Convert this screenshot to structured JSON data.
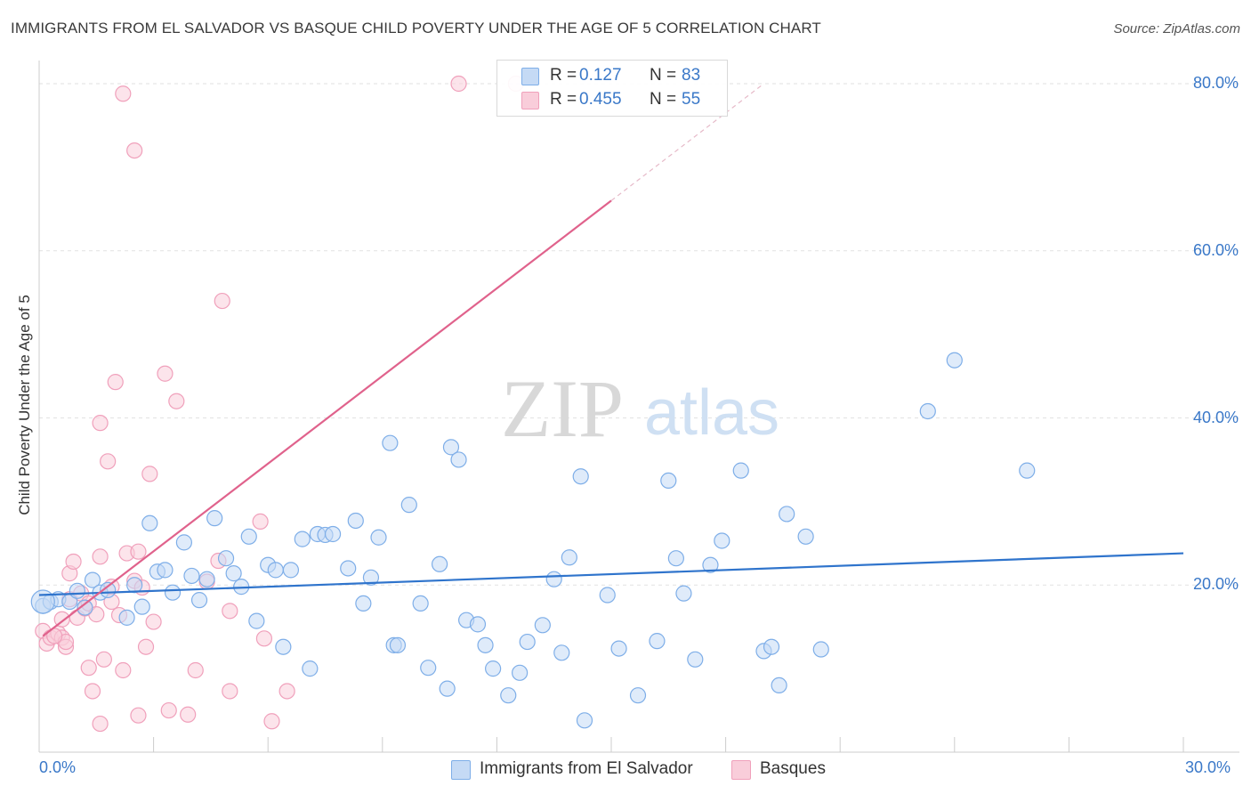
{
  "title": "IMMIGRANTS FROM EL SALVADOR VS BASQUE CHILD POVERTY UNDER THE AGE OF 5 CORRELATION CHART",
  "source": "Source: ZipAtlas.com",
  "watermark": {
    "zip": "ZIP",
    "atlas": "atlas"
  },
  "legend_stats": [
    {
      "r_label": "R =",
      "r_value": "0.127",
      "n_label": "N =",
      "n_value": "83",
      "color": "#7eaee8",
      "fill": "#c5daf5"
    },
    {
      "r_label": "R =",
      "r_value": "0.455",
      "n_label": "N =",
      "n_value": "55",
      "color": "#f0a0bb",
      "fill": "#f9cdda"
    }
  ],
  "chart_data": {
    "type": "scatter",
    "title": "IMMIGRANTS FROM EL SALVADOR VS BASQUE CHILD POVERTY UNDER THE AGE OF 5 CORRELATION CHART",
    "xlabel": "",
    "ylabel": "Child Poverty Under the Age of 5",
    "xlim": [
      0,
      30
    ],
    "ylim": [
      0,
      80
    ],
    "x_tick_labels": [
      "0.0%",
      "30.0%"
    ],
    "y_tick_labels": [
      "20.0%",
      "40.0%",
      "60.0%",
      "80.0%"
    ],
    "y_ticks": [
      20,
      40,
      60,
      80
    ],
    "grid": true,
    "legend_position": "bottom",
    "series": [
      {
        "name": "Immigrants from El Salvador",
        "color": "#7eaee8",
        "fill": "#c5daf5",
        "trend_color": "#2f74cc",
        "trend": {
          "x0": 0,
          "y0": 18.8,
          "x1": 30,
          "y1": 23.8
        },
        "points": [
          [
            0.1,
            17.5
          ],
          [
            0.3,
            18.0
          ],
          [
            0.5,
            18.3
          ],
          [
            0.8,
            18.0
          ],
          [
            1.0,
            19.3
          ],
          [
            1.2,
            17.3
          ],
          [
            1.4,
            20.6
          ],
          [
            1.6,
            19.1
          ],
          [
            1.8,
            19.4
          ],
          [
            2.3,
            16.1
          ],
          [
            2.5,
            20.0
          ],
          [
            2.7,
            17.4
          ],
          [
            2.9,
            27.4
          ],
          [
            3.1,
            21.6
          ],
          [
            3.3,
            21.8
          ],
          [
            3.5,
            19.1
          ],
          [
            3.8,
            25.1
          ],
          [
            4.0,
            21.1
          ],
          [
            4.2,
            18.2
          ],
          [
            4.4,
            20.7
          ],
          [
            4.6,
            28.0
          ],
          [
            4.9,
            23.2
          ],
          [
            5.1,
            21.4
          ],
          [
            5.3,
            19.8
          ],
          [
            5.5,
            25.8
          ],
          [
            5.7,
            15.7
          ],
          [
            6.0,
            22.4
          ],
          [
            6.2,
            21.8
          ],
          [
            6.4,
            12.6
          ],
          [
            6.6,
            21.8
          ],
          [
            6.9,
            25.5
          ],
          [
            7.1,
            10.0
          ],
          [
            7.3,
            26.1
          ],
          [
            7.5,
            26.0
          ],
          [
            7.7,
            26.1
          ],
          [
            8.1,
            22.0
          ],
          [
            8.3,
            27.7
          ],
          [
            8.5,
            17.8
          ],
          [
            8.7,
            20.9
          ],
          [
            8.9,
            25.7
          ],
          [
            9.2,
            37.0
          ],
          [
            9.3,
            12.8
          ],
          [
            9.4,
            12.8
          ],
          [
            9.7,
            29.6
          ],
          [
            10.0,
            17.8
          ],
          [
            10.2,
            10.1
          ],
          [
            10.5,
            22.5
          ],
          [
            10.7,
            7.6
          ],
          [
            10.8,
            36.5
          ],
          [
            11.0,
            35.0
          ],
          [
            11.2,
            15.8
          ],
          [
            11.5,
            15.3
          ],
          [
            11.7,
            12.8
          ],
          [
            11.9,
            10.0
          ],
          [
            12.3,
            6.8
          ],
          [
            12.6,
            9.5
          ],
          [
            12.8,
            13.2
          ],
          [
            13.2,
            15.2
          ],
          [
            13.5,
            20.7
          ],
          [
            13.7,
            11.9
          ],
          [
            13.9,
            23.3
          ],
          [
            14.2,
            33.0
          ],
          [
            14.3,
            3.8
          ],
          [
            14.9,
            18.8
          ],
          [
            15.2,
            12.4
          ],
          [
            15.7,
            6.8
          ],
          [
            16.2,
            13.3
          ],
          [
            16.5,
            32.5
          ],
          [
            16.7,
            23.2
          ],
          [
            16.9,
            19.0
          ],
          [
            17.2,
            11.1
          ],
          [
            17.6,
            22.4
          ],
          [
            17.9,
            25.3
          ],
          [
            18.4,
            33.7
          ],
          [
            19.0,
            12.1
          ],
          [
            19.2,
            12.6
          ],
          [
            19.4,
            8.0
          ],
          [
            19.6,
            28.5
          ],
          [
            20.1,
            25.8
          ],
          [
            20.5,
            12.3
          ],
          [
            23.3,
            40.8
          ],
          [
            24.0,
            46.9
          ],
          [
            25.9,
            33.7
          ]
        ]
      },
      {
        "name": "Basques",
        "color": "#f0a0bb",
        "fill": "#f9cdda",
        "trend_color": "#e0628c",
        "trend": {
          "x0": 0.1,
          "y0": 13.9,
          "x1": 15.0,
          "y1": 66.0
        },
        "trend_extension": {
          "x0": 15.0,
          "y0": 66.0,
          "x1": 19.0,
          "y1": 80.0
        },
        "points": [
          [
            0.1,
            14.5
          ],
          [
            0.2,
            13.0
          ],
          [
            0.3,
            13.7
          ],
          [
            0.5,
            14.2
          ],
          [
            0.6,
            13.7
          ],
          [
            0.6,
            15.9
          ],
          [
            0.7,
            12.6
          ],
          [
            0.7,
            13.2
          ],
          [
            0.8,
            18.3
          ],
          [
            0.8,
            21.4
          ],
          [
            0.9,
            22.8
          ],
          [
            1.0,
            16.1
          ],
          [
            1.1,
            19.0
          ],
          [
            1.2,
            17.2
          ],
          [
            1.3,
            17.8
          ],
          [
            1.3,
            10.1
          ],
          [
            1.4,
            7.3
          ],
          [
            1.6,
            39.4
          ],
          [
            1.6,
            23.4
          ],
          [
            1.8,
            34.8
          ],
          [
            1.7,
            11.1
          ],
          [
            1.9,
            18.0
          ],
          [
            1.9,
            19.8
          ],
          [
            2.0,
            44.3
          ],
          [
            2.1,
            16.4
          ],
          [
            2.2,
            78.8
          ],
          [
            2.2,
            9.8
          ],
          [
            2.3,
            23.8
          ],
          [
            2.5,
            72.0
          ],
          [
            2.5,
            20.5
          ],
          [
            2.6,
            24.0
          ],
          [
            2.6,
            4.4
          ],
          [
            2.8,
            12.6
          ],
          [
            2.9,
            33.3
          ],
          [
            3.0,
            15.6
          ],
          [
            3.3,
            45.3
          ],
          [
            3.4,
            5.0
          ],
          [
            3.6,
            42.0
          ],
          [
            3.9,
            4.5
          ],
          [
            4.1,
            9.8
          ],
          [
            4.4,
            20.4
          ],
          [
            4.7,
            22.9
          ],
          [
            4.8,
            54.0
          ],
          [
            5.0,
            16.9
          ],
          [
            5.0,
            7.3
          ],
          [
            5.8,
            27.6
          ],
          [
            5.9,
            13.6
          ],
          [
            6.1,
            3.7
          ],
          [
            6.5,
            7.3
          ],
          [
            11.0,
            80.0
          ],
          [
            12.5,
            80.0
          ],
          [
            1.6,
            3.4
          ],
          [
            2.7,
            19.7
          ],
          [
            0.4,
            13.9
          ],
          [
            1.5,
            16.5
          ]
        ]
      }
    ]
  }
}
